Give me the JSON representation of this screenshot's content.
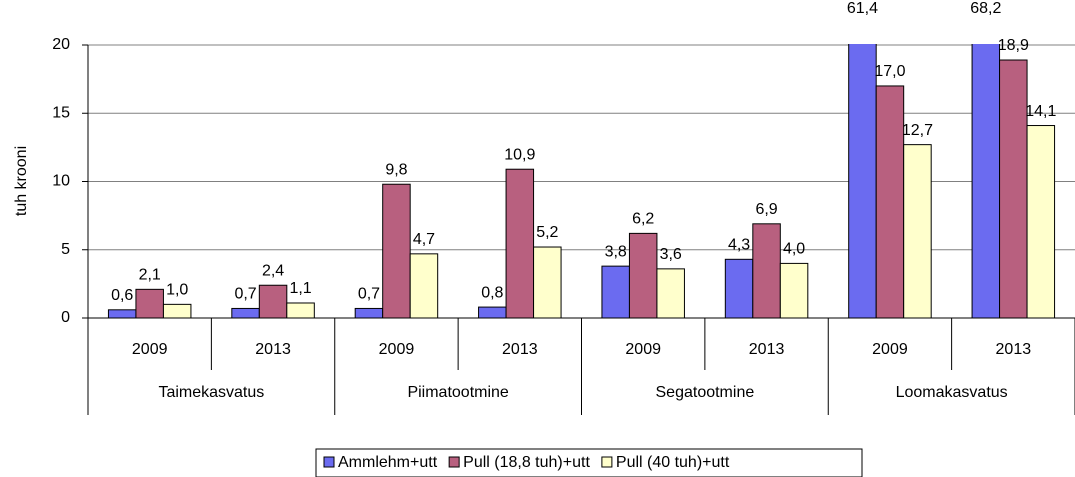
{
  "chart_data": {
    "type": "bar",
    "y_label": "tuh krooni",
    "categories": [
      "2009",
      "2013",
      "2009",
      "2013",
      "2009",
      "2013",
      "2009",
      "2013"
    ],
    "groups": [
      "Taimekasvatus",
      "Piimatootmine",
      "Segatootmine",
      "Loomakasvatus"
    ],
    "series": [
      {
        "name": "Ammlehm+utt",
        "color": "#6b6bf0",
        "values": [
          0.6,
          0.7,
          0.7,
          0.8,
          3.8,
          4.3,
          61.4,
          68.2
        ],
        "value_labels": [
          "0,6",
          "0,7",
          "0,7",
          "0,8",
          "3,8",
          "4,3",
          "61,4",
          "68,2"
        ]
      },
      {
        "name": "Pull (18,8 tuh)+utt",
        "color": "#b8607f",
        "values": [
          2.1,
          2.4,
          9.8,
          10.9,
          6.2,
          6.9,
          17.0,
          18.9
        ],
        "value_labels": [
          "2,1",
          "2,4",
          "9,8",
          "10,9",
          "6,2",
          "6,9",
          "17,0",
          "18,9"
        ]
      },
      {
        "name": "Pull (40 tuh)+utt",
        "color": "#ffffcc",
        "values": [
          1.0,
          1.1,
          4.7,
          5.2,
          3.6,
          4.0,
          12.7,
          14.1
        ],
        "value_labels": [
          "1,0",
          "1,1",
          "4,7",
          "5,2",
          "3,6",
          "4,0",
          "12,7",
          "14,1"
        ]
      }
    ],
    "ylim": [
      0,
      20
    ],
    "yticks": [
      0,
      5,
      10,
      15,
      20
    ],
    "grid": true,
    "legend": "bottom"
  }
}
